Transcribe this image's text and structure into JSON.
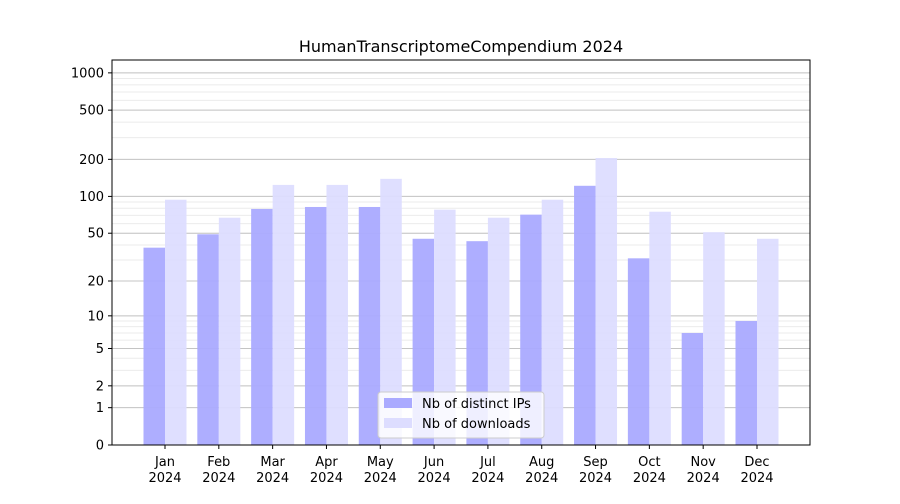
{
  "chart_data": {
    "type": "bar",
    "title": "HumanTranscriptomeCompendium 2024",
    "xlabel": "",
    "ylabel": "",
    "yscale": "log(1+y)",
    "ylim": [
      0,
      1270
    ],
    "yticks": [
      0,
      1,
      2,
      5,
      10,
      20,
      50,
      100,
      200,
      500,
      1000
    ],
    "grid": true,
    "legend_position": "bottom-center",
    "categories": [
      "Jan\n2024",
      "Feb\n2024",
      "Mar\n2024",
      "Apr\n2024",
      "May\n2024",
      "Jun\n2024",
      "Jul\n2024",
      "Aug\n2024",
      "Sep\n2024",
      "Oct\n2024",
      "Nov\n2024",
      "Dec\n2024"
    ],
    "series": [
      {
        "name": "Nb of distinct IPs",
        "color": "#aaaaff",
        "values": [
          38,
          49,
          79,
          82,
          82,
          45,
          43,
          71,
          122,
          31,
          7,
          9
        ]
      },
      {
        "name": "Nb of downloads",
        "color": "#ddddff",
        "values": [
          94,
          67,
          124,
          124,
          139,
          78,
          67,
          94,
          205,
          75,
          51,
          45
        ]
      }
    ]
  }
}
